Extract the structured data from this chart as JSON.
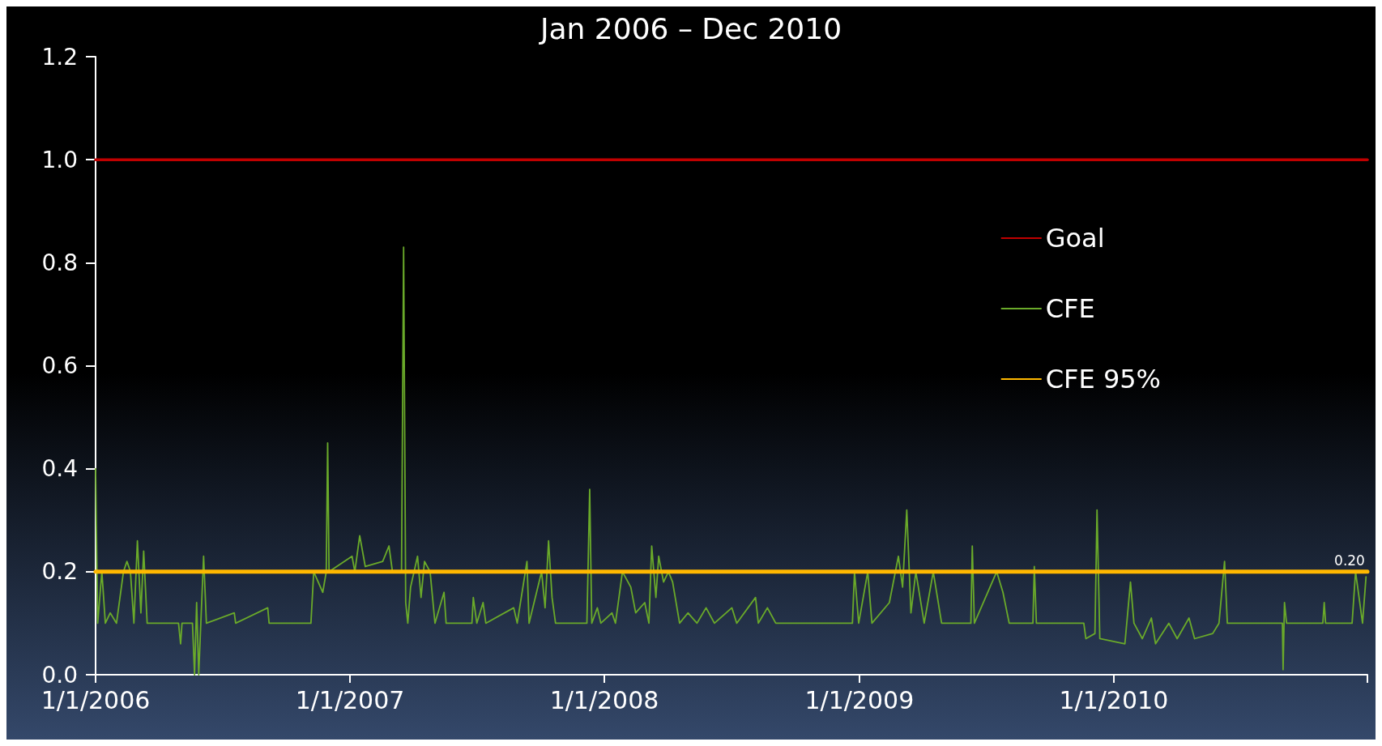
{
  "chart_data": {
    "type": "line",
    "title": "Jan 2006 – Dec 2010",
    "xlim": [
      "2006-01-01",
      "2010-12-31"
    ],
    "xticks": [
      {
        "value": "2006-01-01",
        "label": "1/1/2006"
      },
      {
        "value": "2007-01-01",
        "label": "1/1/2007"
      },
      {
        "value": "2008-01-01",
        "label": "1/1/2008"
      },
      {
        "value": "2009-01-01",
        "label": "1/1/2009"
      },
      {
        "value": "2010-01-01",
        "label": "1/1/2010"
      },
      {
        "value": "2010-12-31",
        "label": null
      }
    ],
    "ylim": [
      0,
      1.2
    ],
    "yticks": [
      {
        "value": 0,
        "label": "0.0"
      },
      {
        "value": 0.2,
        "label": "0.2"
      },
      {
        "value": 0.4,
        "label": "0.4"
      },
      {
        "value": 0.6,
        "label": "0.6"
      },
      {
        "value": 0.8,
        "label": "0.8"
      },
      {
        "value": 1,
        "label": "1.0"
      },
      {
        "value": 1.2,
        "label": "1.2"
      }
    ],
    "grid": false,
    "legend": "right",
    "line_style": "solid",
    "series": [
      {
        "name": "Goal",
        "color": "#c00000",
        "x": [
          "2006-01-01",
          "2010-12-31"
        ],
        "values": [
          1,
          1
        ]
      },
      {
        "name": "CFE",
        "color": "#6aaa2a",
        "x": [
          "2006-01-01",
          "2006-01-04",
          "2006-01-10",
          "2006-01-15",
          "2006-01-22",
          "2006-01-31",
          "2006-02-10",
          "2006-02-15",
          "2006-02-20",
          "2006-02-25",
          "2006-03-02",
          "2006-03-07",
          "2006-03-11",
          "2006-03-16",
          "2006-04-30",
          "2006-05-03",
          "2006-05-05",
          "2006-05-20",
          "2006-05-23",
          "2006-05-26",
          "2006-05-29",
          "2006-06-01",
          "2006-06-05",
          "2006-06-09",
          "2006-07-19",
          "2006-07-21",
          "2006-09-05",
          "2006-09-07",
          "2006-11-06",
          "2006-11-10",
          "2006-11-23",
          "2006-11-28",
          "2006-11-30",
          "2006-12-02",
          "2007-01-04",
          "2007-01-08",
          "2007-01-15",
          "2007-01-23",
          "2007-02-17",
          "2007-02-26",
          "2007-03-03",
          "2007-03-16",
          "2007-03-19",
          "2007-03-22",
          "2007-03-25",
          "2007-03-29",
          "2007-04-08",
          "2007-04-13",
          "2007-04-18",
          "2007-04-26",
          "2007-05-03",
          "2007-05-16",
          "2007-05-19",
          "2007-06-25",
          "2007-06-27",
          "2007-07-02",
          "2007-07-11",
          "2007-07-15",
          "2007-08-24",
          "2007-08-29",
          "2007-09-12",
          "2007-09-15",
          "2007-10-03",
          "2007-10-08",
          "2007-10-13",
          "2007-10-18",
          "2007-10-23",
          "2007-12-07",
          "2007-12-11",
          "2007-12-14",
          "2007-12-22",
          "2007-12-27",
          "2008-01-12",
          "2008-01-17",
          "2008-01-27",
          "2008-02-08",
          "2008-02-15",
          "2008-02-28",
          "2008-03-05",
          "2008-03-09",
          "2008-03-15",
          "2008-03-19",
          "2008-03-26",
          "2008-04-02",
          "2008-04-08",
          "2008-04-18",
          "2008-04-30",
          "2008-05-13",
          "2008-05-26",
          "2008-06-07",
          "2008-07-02",
          "2008-07-09",
          "2008-08-05",
          "2008-08-09",
          "2008-08-22",
          "2008-09-03",
          "2008-12-22",
          "2008-12-25",
          "2008-12-31",
          "2009-01-13",
          "2009-01-19",
          "2009-02-13",
          "2009-02-26",
          "2009-03-04",
          "2009-03-10",
          "2009-03-16",
          "2009-03-23",
          "2009-04-04",
          "2009-04-17",
          "2009-04-29",
          "2009-06-10",
          "2009-06-12",
          "2009-06-15",
          "2009-07-17",
          "2009-07-26",
          "2009-08-04",
          "2009-09-07",
          "2009-09-09",
          "2009-09-12",
          "2009-11-19",
          "2009-11-22",
          "2009-12-05",
          "2009-12-08",
          "2009-12-12",
          "2010-01-17",
          "2010-01-25",
          "2010-01-30",
          "2010-02-11",
          "2010-02-24",
          "2010-03-02",
          "2010-03-21",
          "2010-04-02",
          "2010-04-19",
          "2010-04-27",
          "2010-05-23",
          "2010-06-01",
          "2010-06-09",
          "2010-06-13",
          "2010-08-31",
          "2010-09-01",
          "2010-09-03",
          "2010-09-06",
          "2010-10-28",
          "2010-10-30",
          "2010-11-01",
          "2010-12-09",
          "2010-12-14",
          "2010-12-19",
          "2010-12-24",
          "2010-12-29"
        ],
        "values": [
          0.4,
          0.1,
          0.2,
          0.1,
          0.12,
          0.1,
          0.2,
          0.22,
          0.2,
          0.1,
          0.26,
          0.12,
          0.24,
          0.1,
          0.1,
          0.06,
          0.1,
          0.1,
          0.0,
          0.14,
          0.0,
          0.1,
          0.23,
          0.1,
          0.12,
          0.1,
          0.13,
          0.1,
          0.1,
          0.2,
          0.16,
          0.2,
          0.45,
          0.2,
          0.23,
          0.2,
          0.27,
          0.21,
          0.22,
          0.25,
          0.2,
          0.2,
          0.83,
          0.14,
          0.1,
          0.17,
          0.23,
          0.15,
          0.22,
          0.2,
          0.1,
          0.16,
          0.1,
          0.1,
          0.15,
          0.1,
          0.14,
          0.1,
          0.13,
          0.1,
          0.22,
          0.1,
          0.2,
          0.13,
          0.26,
          0.15,
          0.1,
          0.1,
          0.36,
          0.1,
          0.13,
          0.1,
          0.12,
          0.1,
          0.2,
          0.17,
          0.12,
          0.14,
          0.1,
          0.25,
          0.15,
          0.23,
          0.18,
          0.2,
          0.18,
          0.1,
          0.12,
          0.1,
          0.13,
          0.1,
          0.13,
          0.1,
          0.15,
          0.1,
          0.13,
          0.1,
          0.1,
          0.2,
          0.1,
          0.2,
          0.1,
          0.14,
          0.23,
          0.17,
          0.32,
          0.12,
          0.2,
          0.1,
          0.2,
          0.1,
          0.1,
          0.25,
          0.1,
          0.2,
          0.16,
          0.1,
          0.1,
          0.21,
          0.1,
          0.1,
          0.07,
          0.08,
          0.32,
          0.07,
          0.06,
          0.18,
          0.1,
          0.07,
          0.11,
          0.06,
          0.1,
          0.07,
          0.11,
          0.07,
          0.08,
          0.1,
          0.22,
          0.1,
          0.1,
          0.01,
          0.14,
          0.1,
          0.1,
          0.14,
          0.1,
          0.1,
          0.2,
          0.15,
          0.1,
          0.19
        ]
      },
      {
        "name": "CFE 95%",
        "color": "#ffb800",
        "x": [
          "2006-01-01",
          "2010-12-31"
        ],
        "values": [
          0.2,
          0.2
        ],
        "value_labels": [
          null,
          "0.20"
        ]
      }
    ]
  }
}
